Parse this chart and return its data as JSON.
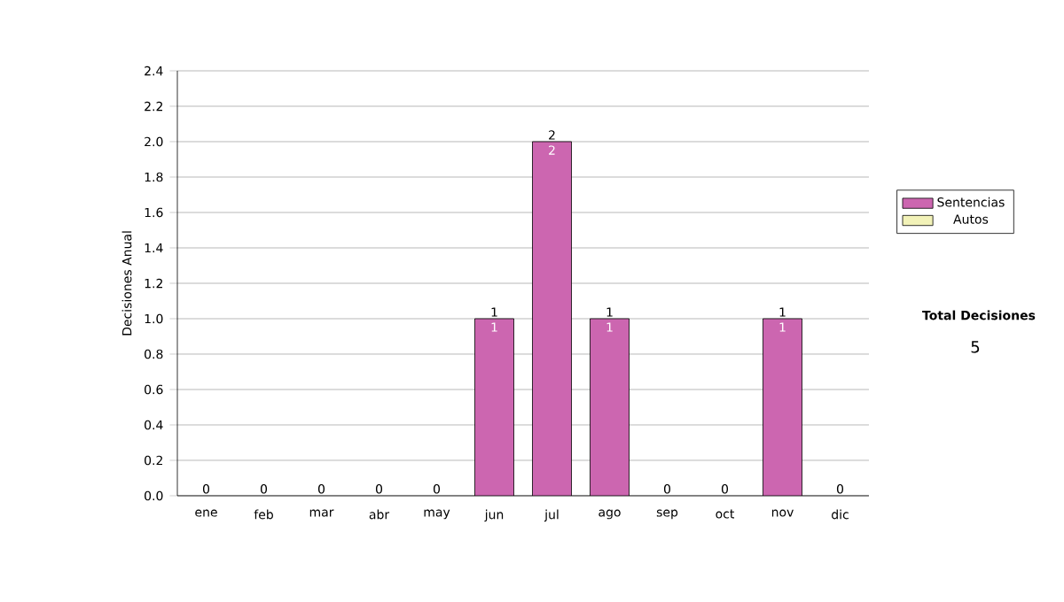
{
  "chart_data": {
    "type": "bar",
    "stacked": true,
    "ylabel": "Decisiones Anual",
    "categories": [
      "ene",
      "feb",
      "mar",
      "abr",
      "may",
      "jun",
      "jul",
      "ago",
      "sep",
      "oct",
      "nov",
      "dic"
    ],
    "series": [
      {
        "name": "Sentencias",
        "color": "#cc66b0",
        "values": [
          0,
          0,
          0,
          0,
          0,
          1,
          2,
          1,
          0,
          0,
          1,
          0
        ],
        "value_labels": [
          null,
          null,
          null,
          null,
          null,
          "1",
          "2",
          "1",
          null,
          null,
          "1",
          null
        ]
      },
      {
        "name": "Autos",
        "color": "#f2f2b8",
        "values": [
          0,
          0,
          0,
          0,
          0,
          0,
          0,
          0,
          0,
          0,
          0,
          0
        ]
      }
    ],
    "totals": [
      "0",
      "0",
      "0",
      "0",
      "0",
      "1",
      "2",
      "1",
      "0",
      "0",
      "1",
      "0"
    ],
    "ylim": [
      0,
      2.4
    ],
    "yticks": [
      {
        "value": 0,
        "label": "0.0"
      },
      {
        "value": 0.2,
        "label": "0.2"
      },
      {
        "value": 0.4,
        "label": "0.4"
      },
      {
        "value": 0.6,
        "label": "0.6"
      },
      {
        "value": 0.8,
        "label": "0.8"
      },
      {
        "value": 1.0,
        "label": "1.0"
      },
      {
        "value": 1.2,
        "label": "1.2"
      },
      {
        "value": 1.4,
        "label": "1.4"
      },
      {
        "value": 1.6,
        "label": "1.6"
      },
      {
        "value": 1.8,
        "label": "1.8"
      },
      {
        "value": 2.0,
        "label": "2.0"
      },
      {
        "value": 2.2,
        "label": "2.2"
      },
      {
        "value": 2.4,
        "label": "2.4"
      }
    ],
    "grid": "y",
    "legend": "right",
    "annotations": [
      "Total Decisiones",
      "5"
    ]
  }
}
